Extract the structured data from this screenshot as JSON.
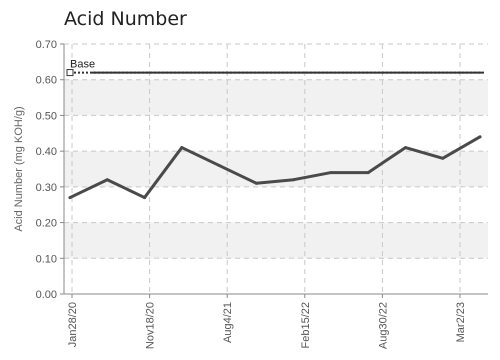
{
  "chart_data": {
    "type": "line",
    "title": "Acid Number",
    "xlabel": "",
    "ylabel": "Acid Number (mg KOH/g)",
    "ylim": [
      0,
      0.7
    ],
    "yticks": [
      "0.00",
      "0.10",
      "0.20",
      "0.30",
      "0.40",
      "0.50",
      "0.60",
      "0.70"
    ],
    "x_tick_labels": [
      "Jan28/20",
      "Nov18/20",
      "Aug4/21",
      "Feb15/22",
      "Aug30/22",
      "Mar2/23"
    ],
    "grid": true,
    "series": [
      {
        "values": [
          0.27,
          0.32,
          0.27,
          0.41,
          0.36,
          0.31,
          0.32,
          0.34,
          0.34,
          0.41,
          0.38,
          0.44
        ],
        "color": "#4a4a4a"
      }
    ],
    "reference_lines": [
      {
        "name": "Base",
        "value": 0.62,
        "color": "#333333"
      }
    ]
  },
  "colors": {
    "grid": "#c8c8c8",
    "band": "#f1f1f1",
    "axis": "#888888"
  }
}
